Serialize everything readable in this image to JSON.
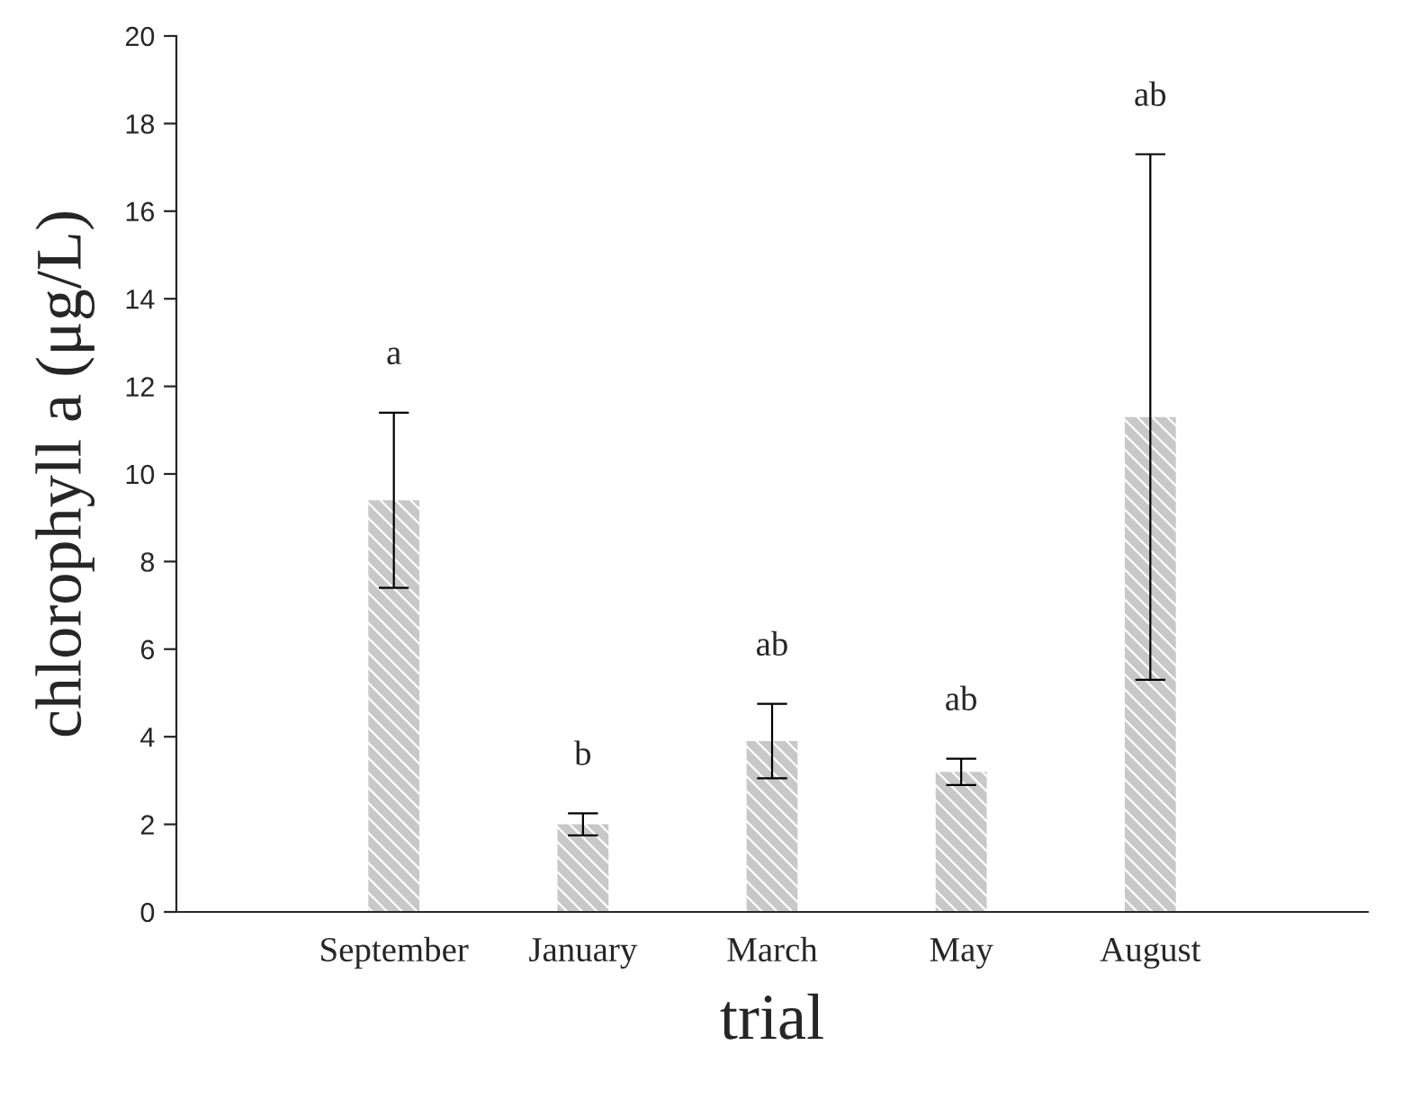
{
  "chart_data": {
    "type": "bar",
    "xlabel": "trial",
    "ylabel": "chlorophyll a (μg/L)",
    "categories": [
      "September",
      "January",
      "March",
      "May",
      "August"
    ],
    "values": [
      9.4,
      2.0,
      3.9,
      3.2,
      11.3
    ],
    "errors": [
      2.0,
      0.25,
      0.85,
      0.3,
      6.0
    ],
    "color": "#c8c8c8",
    "ylim": [
      0,
      20
    ],
    "yticks": [
      0,
      2,
      4,
      6,
      8,
      10,
      12,
      14,
      16,
      18,
      20
    ],
    "grid": false,
    "annotations": [
      "a",
      "b",
      "ab",
      "ab",
      "ab"
    ]
  }
}
